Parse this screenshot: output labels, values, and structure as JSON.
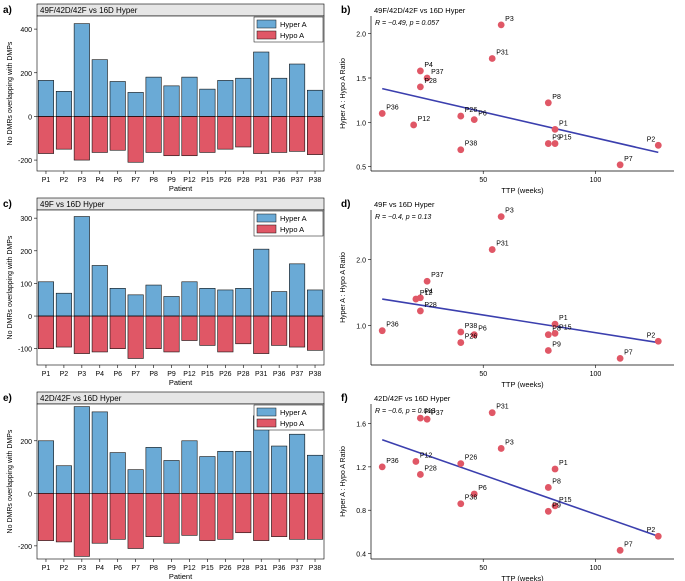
{
  "colors": {
    "hyper": "#6aaad6",
    "hypo": "#e05766",
    "point": "#e05766",
    "line": "#3b3fae",
    "axis": "#000000",
    "header": "#e6e6e6"
  },
  "panel_labels": [
    "a)",
    "b)",
    "c)",
    "d)",
    "e)",
    "f)"
  ],
  "chart_data": [
    {
      "type": "bar",
      "panel": "a)",
      "title": "49F/42D/42F vs 16D Hyper",
      "categories": [
        "P1",
        "P2",
        "P3",
        "P4",
        "P6",
        "P7",
        "P8",
        "P9",
        "P12",
        "P15",
        "P26",
        "P28",
        "P31",
        "P36",
        "P37",
        "P38"
      ],
      "series": [
        {
          "name": "Hyper A",
          "values": [
            165,
            115,
            425,
            260,
            160,
            110,
            180,
            140,
            180,
            125,
            165,
            175,
            295,
            175,
            240,
            120
          ]
        },
        {
          "name": "Hypo A",
          "values": [
            -170,
            -150,
            -200,
            -165,
            -155,
            -210,
            -165,
            -180,
            -180,
            -165,
            -150,
            -140,
            -170,
            -165,
            -160,
            -175
          ]
        }
      ],
      "xlabel": "Patient",
      "ylabel": "No DMRs overlapping with DMPs",
      "ylim": [
        -250,
        460
      ],
      "yticks": [
        -200,
        0,
        200,
        400
      ],
      "legend": "top-right"
    },
    {
      "type": "scatter",
      "panel": "b)",
      "title": "49F/42D/42F vs 16D Hyper",
      "stat_label": "R = −0.49, p = 0.057",
      "points": [
        {
          "label": "P3",
          "x": 58,
          "y": 2.1
        },
        {
          "label": "P31",
          "x": 54,
          "y": 1.72
        },
        {
          "label": "P4",
          "x": 22,
          "y": 1.58
        },
        {
          "label": "P37",
          "x": 25,
          "y": 1.5
        },
        {
          "label": "P28",
          "x": 22,
          "y": 1.4
        },
        {
          "label": "P8",
          "x": 79,
          "y": 1.22
        },
        {
          "label": "P36",
          "x": 5,
          "y": 1.1
        },
        {
          "label": "P26",
          "x": 40,
          "y": 1.07
        },
        {
          "label": "P6",
          "x": 46,
          "y": 1.03
        },
        {
          "label": "P12",
          "x": 19,
          "y": 0.97
        },
        {
          "label": "P1",
          "x": 82,
          "y": 0.92
        },
        {
          "label": "P9",
          "x": 79,
          "y": 0.76
        },
        {
          "label": "P15",
          "x": 82,
          "y": 0.76
        },
        {
          "label": "P2",
          "x": 128,
          "y": 0.74
        },
        {
          "label": "P38",
          "x": 40,
          "y": 0.69
        },
        {
          "label": "P7",
          "x": 111,
          "y": 0.52
        }
      ],
      "regression": {
        "x1": 5,
        "y1": 1.38,
        "x2": 128,
        "y2": 0.66
      },
      "xlabel": "TTP (weeks)",
      "ylabel": "Hyper A : Hypo A Ratio",
      "xlim": [
        0,
        135
      ],
      "ylim": [
        0.45,
        2.2
      ],
      "xticks": [
        50,
        100
      ],
      "yticks": [
        0.5,
        1.0,
        1.5,
        2.0
      ]
    },
    {
      "type": "bar",
      "panel": "c)",
      "title": "49F  vs 16D Hyper",
      "categories": [
        "P1",
        "P2",
        "P3",
        "P4",
        "P6",
        "P7",
        "P8",
        "P9",
        "P12",
        "P15",
        "P26",
        "P28",
        "P31",
        "P36",
        "P37",
        "P38"
      ],
      "series": [
        {
          "name": "Hyper A",
          "values": [
            105,
            70,
            305,
            155,
            85,
            65,
            95,
            60,
            105,
            85,
            80,
            85,
            205,
            75,
            160,
            80
          ]
        },
        {
          "name": "Hypo A",
          "values": [
            -100,
            -95,
            -115,
            -110,
            -100,
            -130,
            -100,
            -110,
            -75,
            -90,
            -110,
            -85,
            -115,
            -90,
            -95,
            -105
          ]
        }
      ],
      "xlabel": "Patient",
      "ylabel": "No DMRs overlapping with DMPs",
      "ylim": [
        -150,
        325
      ],
      "yticks": [
        -100,
        0,
        100,
        200,
        300
      ],
      "legend": "top-right"
    },
    {
      "type": "scatter",
      "panel": "d)",
      "title": "49F  vs 16D Hyper",
      "stat_label": "R = −0.4,  p = 0.13",
      "points": [
        {
          "label": "P3",
          "x": 58,
          "y": 2.65
        },
        {
          "label": "P31",
          "x": 54,
          "y": 2.15
        },
        {
          "label": "P37",
          "x": 25,
          "y": 1.67
        },
        {
          "label": "P4",
          "x": 22,
          "y": 1.42
        },
        {
          "label": "P12",
          "x": 20,
          "y": 1.4
        },
        {
          "label": "P28",
          "x": 22,
          "y": 1.22
        },
        {
          "label": "P1",
          "x": 82,
          "y": 1.02
        },
        {
          "label": "P36",
          "x": 5,
          "y": 0.92
        },
        {
          "label": "P38",
          "x": 40,
          "y": 0.9
        },
        {
          "label": "P15",
          "x": 82,
          "y": 0.88
        },
        {
          "label": "P6",
          "x": 46,
          "y": 0.86
        },
        {
          "label": "P8",
          "x": 79,
          "y": 0.86
        },
        {
          "label": "P26",
          "x": 40,
          "y": 0.74
        },
        {
          "label": "P2",
          "x": 128,
          "y": 0.76
        },
        {
          "label": "P9",
          "x": 79,
          "y": 0.62
        },
        {
          "label": "P7",
          "x": 111,
          "y": 0.5
        }
      ],
      "regression": {
        "x1": 5,
        "y1": 1.4,
        "x2": 128,
        "y2": 0.74
      },
      "xlabel": "TTP (weeks)",
      "ylabel": "Hyper A : Hypo A Ratio",
      "xlim": [
        0,
        135
      ],
      "ylim": [
        0.4,
        2.75
      ],
      "xticks": [
        50,
        100
      ],
      "yticks": [
        1.0,
        2.0
      ]
    },
    {
      "type": "bar",
      "panel": "e)",
      "title": "42D/42F vs 16D Hyper",
      "categories": [
        "P1",
        "P2",
        "P3",
        "P4",
        "P6",
        "P7",
        "P8",
        "P9",
        "P12",
        "P15",
        "P26",
        "P28",
        "P31",
        "P36",
        "P37",
        "P38"
      ],
      "series": [
        {
          "name": "Hyper A",
          "values": [
            200,
            105,
            330,
            310,
            155,
            90,
            175,
            125,
            200,
            140,
            160,
            160,
            295,
            180,
            225,
            145
          ]
        },
        {
          "name": "Hypo A",
          "values": [
            -180,
            -185,
            -240,
            -190,
            -175,
            -210,
            -165,
            -190,
            -160,
            -180,
            -175,
            -150,
            -180,
            -165,
            -175,
            -175
          ]
        }
      ],
      "xlabel": "Patient",
      "ylabel": "No DMRs overlapping with DMPs",
      "ylim": [
        -250,
        340
      ],
      "yticks": [
        -200,
        0,
        200
      ],
      "legend": "top-right"
    },
    {
      "type": "scatter",
      "panel": "f)",
      "title": "42D/42F vs 16D Hyper",
      "stat_label": "R = −0.6, p = 0.013",
      "points": [
        {
          "label": "P31",
          "x": 54,
          "y": 1.7
        },
        {
          "label": "P4",
          "x": 22,
          "y": 1.65
        },
        {
          "label": "P37",
          "x": 25,
          "y": 1.64
        },
        {
          "label": "P3",
          "x": 58,
          "y": 1.37
        },
        {
          "label": "P12",
          "x": 20,
          "y": 1.25
        },
        {
          "label": "P26",
          "x": 40,
          "y": 1.23
        },
        {
          "label": "P36",
          "x": 5,
          "y": 1.2
        },
        {
          "label": "P1",
          "x": 82,
          "y": 1.18
        },
        {
          "label": "P28",
          "x": 22,
          "y": 1.13
        },
        {
          "label": "P8",
          "x": 79,
          "y": 1.01
        },
        {
          "label": "P6",
          "x": 46,
          "y": 0.95
        },
        {
          "label": "P38",
          "x": 40,
          "y": 0.86
        },
        {
          "label": "P15",
          "x": 82,
          "y": 0.84
        },
        {
          "label": "P9",
          "x": 79,
          "y": 0.79
        },
        {
          "label": "P2",
          "x": 128,
          "y": 0.56
        },
        {
          "label": "P7",
          "x": 111,
          "y": 0.43
        }
      ],
      "regression": {
        "x1": 5,
        "y1": 1.45,
        "x2": 128,
        "y2": 0.56
      },
      "xlabel": "TTP (weeks)",
      "ylabel": "Hyper A : Hypo A Ratio",
      "xlim": [
        0,
        135
      ],
      "ylim": [
        0.35,
        1.78
      ],
      "xticks": [
        50,
        100
      ],
      "yticks": [
        0.4,
        0.8,
        1.2,
        1.6
      ]
    }
  ]
}
